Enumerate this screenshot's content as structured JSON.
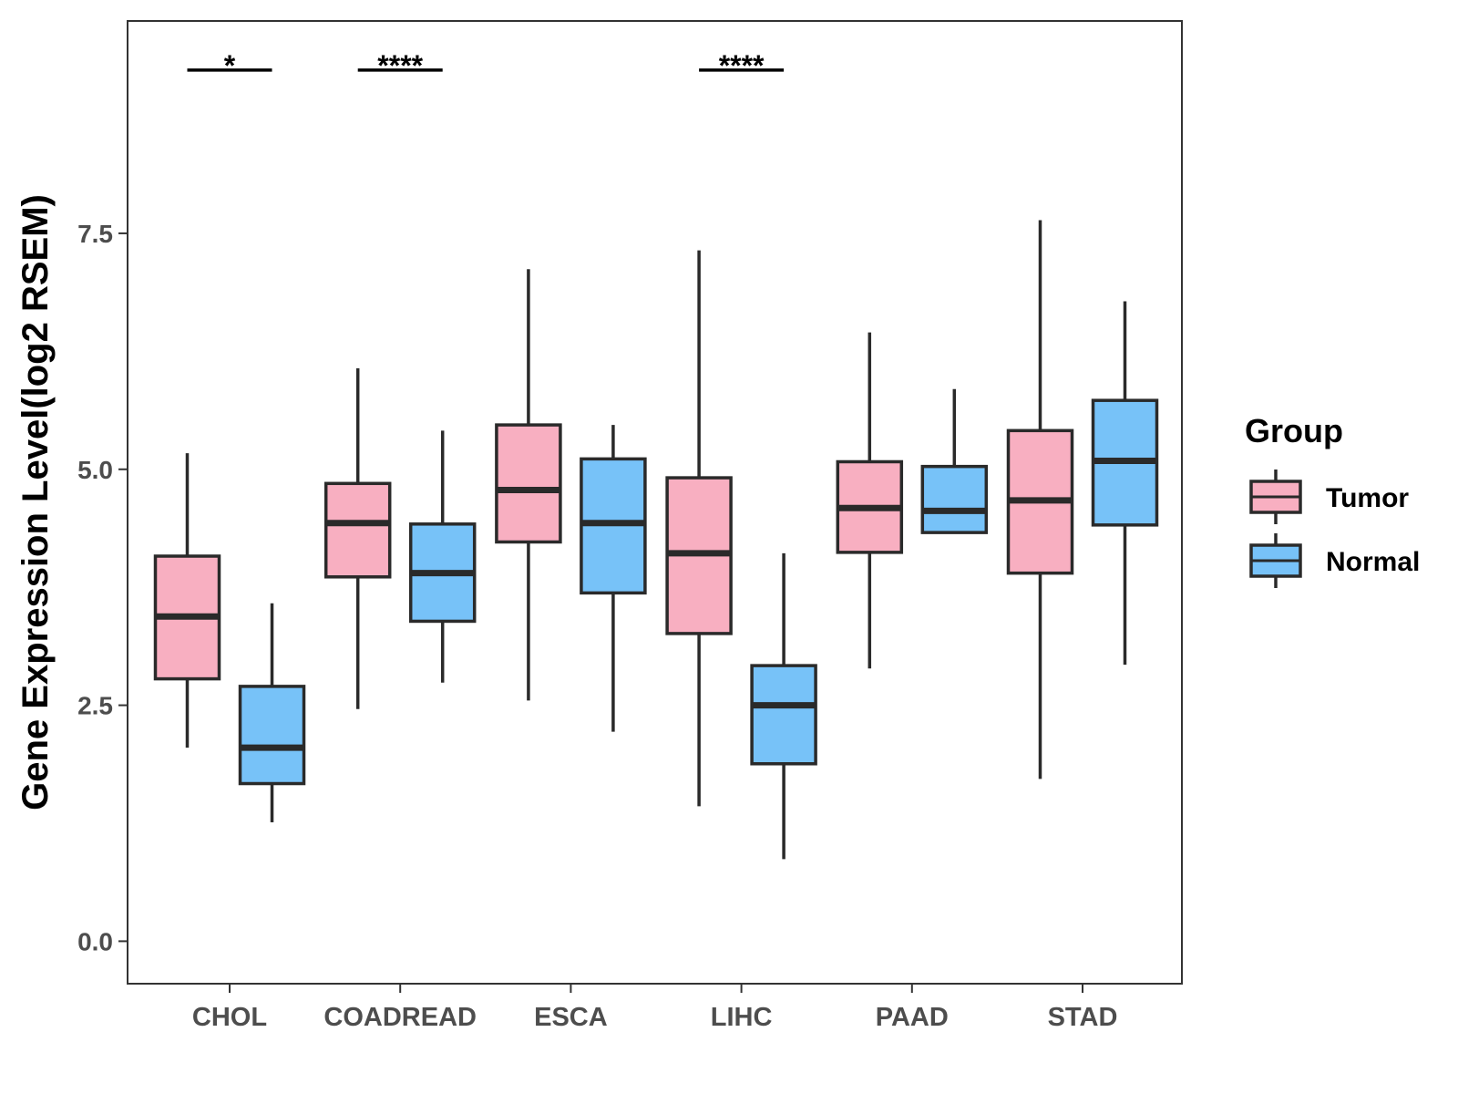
{
  "chart_data": {
    "type": "boxplot",
    "title": "",
    "xlabel": "",
    "ylabel": "Gene Expression Level(log2 RSEM)",
    "ylim": [
      -0.45,
      9.75
    ],
    "yticks": [
      0.0,
      2.5,
      5.0,
      7.5
    ],
    "ytick_labels": [
      "0.0",
      "2.5",
      "5.0",
      "7.5"
    ],
    "grid": false,
    "categories": [
      "CHOL",
      "COADREAD",
      "ESCA",
      "LIHC",
      "PAAD",
      "STAD"
    ],
    "legend": {
      "title": "Group",
      "position": "right",
      "entries": [
        {
          "name": "Tumor",
          "color": "#F8AFC1"
        },
        {
          "name": "Normal",
          "color": "#77C2F8"
        }
      ]
    },
    "series": [
      {
        "name": "Tumor",
        "color": "#F8AFC1",
        "boxes": [
          {
            "whisker_low": 2.05,
            "q1": 2.78,
            "median": 3.44,
            "q3": 4.08,
            "whisker_high": 5.17
          },
          {
            "whisker_low": 2.46,
            "q1": 3.86,
            "median": 4.43,
            "q3": 4.85,
            "whisker_high": 6.07
          },
          {
            "whisker_low": 2.55,
            "q1": 4.23,
            "median": 4.78,
            "q3": 5.47,
            "whisker_high": 7.12
          },
          {
            "whisker_low": 1.43,
            "q1": 3.26,
            "median": 4.11,
            "q3": 4.91,
            "whisker_high": 7.32
          },
          {
            "whisker_low": 2.89,
            "q1": 4.12,
            "median": 4.59,
            "q3": 5.08,
            "whisker_high": 6.45
          },
          {
            "whisker_low": 1.72,
            "q1": 3.9,
            "median": 4.67,
            "q3": 5.41,
            "whisker_high": 7.64
          }
        ]
      },
      {
        "name": "Normal",
        "color": "#77C2F8",
        "boxes": [
          {
            "whisker_low": 1.26,
            "q1": 1.67,
            "median": 2.05,
            "q3": 2.7,
            "whisker_high": 3.58
          },
          {
            "whisker_low": 2.74,
            "q1": 3.39,
            "median": 3.9,
            "q3": 4.42,
            "whisker_high": 5.41
          },
          {
            "whisker_low": 2.22,
            "q1": 3.69,
            "median": 4.43,
            "q3": 5.11,
            "whisker_high": 5.47
          },
          {
            "whisker_low": 0.87,
            "q1": 1.88,
            "median": 2.5,
            "q3": 2.92,
            "whisker_high": 4.11
          },
          {
            "whisker_low": 4.33,
            "q1": 4.33,
            "median": 4.56,
            "q3": 5.03,
            "whisker_high": 5.85
          },
          {
            "whisker_low": 2.93,
            "q1": 4.41,
            "median": 5.09,
            "q3": 5.73,
            "whisker_high": 6.78
          }
        ]
      }
    ],
    "annotations": [
      {
        "category": "CHOL",
        "label": "*",
        "y": 9.23
      },
      {
        "category": "COADREAD",
        "label": "****",
        "y": 9.23
      },
      {
        "category": "LIHC",
        "label": "****",
        "y": 9.23
      }
    ]
  }
}
